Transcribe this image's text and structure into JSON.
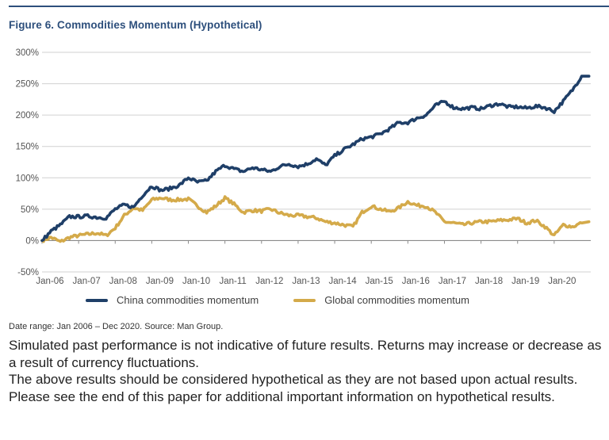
{
  "figure": {
    "title": "Figure 6. Commodities Momentum (Hypothetical)",
    "source_note": "Date range: Jan 2006 – Dec 2020. Source: Man Group.",
    "disclaimer": [
      "Simulated past performance is not indicative of future results. Returns may increase or decrease as a result of currency fluctuations.",
      "The above results should be considered hypothetical as they are not based upon actual results. Please see the end of this paper for additional important information on hypothetical results."
    ]
  },
  "colors": {
    "china": "#1f3f68",
    "global": "#d4aa4a",
    "title": "#2d4f7c",
    "grid": "#d0d0d0"
  },
  "chart_data": {
    "type": "line",
    "title": "Figure 6. Commodities Momentum (Hypothetical)",
    "xlabel": "",
    "ylabel": "",
    "ylim": [
      -50,
      300
    ],
    "yticks": [
      -50,
      0,
      50,
      100,
      150,
      200,
      250,
      300
    ],
    "ytick_labels": [
      "-50%",
      "0%",
      "50%",
      "100%",
      "150%",
      "200%",
      "250%",
      "300%"
    ],
    "xtick_labels": [
      "Jan-06",
      "Jan-07",
      "Jan-08",
      "Jan-09",
      "Jan-10",
      "Jan-11",
      "Jan-12",
      "Jan-13",
      "Jan-14",
      "Jan-15",
      "Jan-16",
      "Jan-17",
      "Jan-18",
      "Jan-19",
      "Jan-20"
    ],
    "x_start_year": 2006,
    "x_end_year": 2021,
    "grid": true,
    "legend_position": "bottom",
    "x_frequency": "quarterly",
    "x_first": "2006-Q1",
    "series": [
      {
        "name": "China commodities momentum",
        "color_key": "china",
        "values": [
          0,
          15,
          25,
          38,
          38,
          39,
          37,
          36,
          50,
          57,
          53,
          72,
          87,
          80,
          83,
          88,
          100,
          93,
          95,
          110,
          120,
          114,
          110,
          116,
          113,
          110,
          118,
          122,
          118,
          122,
          130,
          120,
          135,
          145,
          153,
          162,
          165,
          170,
          178,
          188,
          188,
          195,
          200,
          215,
          222,
          212,
          210,
          212,
          210,
          215,
          218,
          213,
          213,
          211,
          214,
          212,
          206,
          222,
          240,
          262
        ]
      },
      {
        "name": "Global commodities momentum",
        "color_key": "global",
        "values": [
          0,
          5,
          -2,
          5,
          8,
          10,
          12,
          8,
          20,
          40,
          52,
          48,
          65,
          68,
          65,
          65,
          66,
          55,
          45,
          55,
          68,
          58,
          45,
          48,
          47,
          50,
          44,
          40,
          40,
          38,
          36,
          30,
          28,
          25,
          22,
          45,
          55,
          50,
          46,
          52,
          62,
          56,
          55,
          45,
          30,
          28,
          25,
          28,
          30,
          30,
          32,
          33,
          35,
          28,
          32,
          22,
          8,
          25,
          22,
          28
        ]
      }
    ]
  }
}
